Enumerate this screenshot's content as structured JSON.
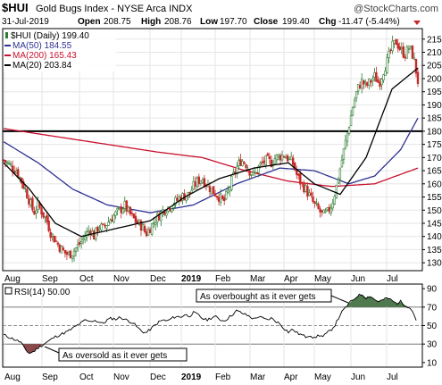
{
  "header": {
    "symbol": "$HUI",
    "name": "Gold Bugs Index - NYSE Arca INDX",
    "watermark": "@StockCharts.com",
    "date": "31-Jul-2019",
    "open_label": "Open",
    "open": "208.75",
    "high_label": "High",
    "high": "208.76",
    "low_label": "Low",
    "low": "197.70",
    "close_label": "Close",
    "close": "199.40",
    "chg_label": "Chg",
    "chg": "-11.47 (-5.44%)"
  },
  "legend": [
    {
      "label": "$HUI (Daily) 199.40",
      "color": "#000000",
      "kind": "candles"
    },
    {
      "label": "MA(50) 184.55",
      "color": "#2e3192",
      "kind": "line"
    },
    {
      "label": "MA(200) 165.43",
      "color": "#c8102e",
      "kind": "line"
    },
    {
      "label": "MA(20) 203.84",
      "color": "#000000",
      "kind": "line"
    }
  ],
  "rsi_legend": {
    "label": "RSI(14) 50.00"
  },
  "annotations": {
    "overbought": "As overbought as it ever gets",
    "oversold": "As oversold as it ever gets"
  },
  "colors": {
    "up": "#2e7d32",
    "down": "#c62828",
    "ma50": "#2e3192",
    "ma200": "#c8102e",
    "ma20": "#000000",
    "rsi_over": "#4f7a4f",
    "rsi_under": "#8b4a4a",
    "grid": "#e6e6e6"
  },
  "chart_data": {
    "type": "candlestick",
    "x_labels": [
      "Aug",
      "Sep",
      "Oct",
      "Nov",
      "Dec",
      "2019",
      "Feb",
      "Mar",
      "Apr",
      "May",
      "Jun",
      "Jul"
    ],
    "y_ticks": [
      130,
      135,
      140,
      145,
      150,
      155,
      160,
      165,
      170,
      175,
      180,
      185,
      190,
      195,
      200,
      205,
      210,
      215
    ],
    "ylim": [
      127,
      219
    ],
    "horizontal_line": 180,
    "price_path": [
      [
        0,
        169
      ],
      [
        3,
        165
      ],
      [
        5,
        158
      ],
      [
        7,
        149
      ],
      [
        8,
        152
      ],
      [
        10,
        146
      ],
      [
        11,
        141
      ],
      [
        13,
        136
      ],
      [
        14,
        134
      ],
      [
        15,
        133
      ],
      [
        16,
        134
      ],
      [
        18,
        138
      ],
      [
        20,
        143
      ],
      [
        21,
        140
      ],
      [
        22,
        144
      ],
      [
        23,
        143
      ],
      [
        25,
        147
      ],
      [
        27,
        150
      ],
      [
        28,
        152
      ],
      [
        29,
        149
      ],
      [
        30,
        147
      ],
      [
        31,
        145
      ],
      [
        32,
        144
      ],
      [
        33,
        141
      ],
      [
        35,
        146
      ],
      [
        37,
        150
      ],
      [
        39,
        152
      ],
      [
        41,
        155
      ],
      [
        43,
        156
      ],
      [
        44,
        159
      ],
      [
        45,
        161
      ],
      [
        46,
        162
      ],
      [
        47,
        160
      ],
      [
        48,
        158
      ],
      [
        50,
        155
      ],
      [
        51,
        153
      ],
      [
        52,
        157
      ],
      [
        53,
        162
      ],
      [
        54,
        166
      ],
      [
        55,
        169
      ],
      [
        56,
        168
      ],
      [
        57,
        165
      ],
      [
        58,
        163
      ],
      [
        59,
        166
      ],
      [
        60,
        168
      ],
      [
        61,
        169
      ],
      [
        62,
        168
      ],
      [
        63,
        170
      ],
      [
        65,
        171
      ],
      [
        67,
        168
      ],
      [
        68,
        163
      ],
      [
        69,
        160
      ],
      [
        70,
        158
      ],
      [
        71,
        155
      ],
      [
        72,
        152
      ],
      [
        73,
        150
      ],
      [
        74,
        148
      ],
      [
        75,
        149
      ],
      [
        76,
        152
      ],
      [
        77,
        158
      ],
      [
        78,
        166
      ],
      [
        79,
        174
      ],
      [
        80,
        182
      ],
      [
        81,
        190
      ],
      [
        82,
        196
      ],
      [
        83,
        199
      ],
      [
        84,
        197
      ],
      [
        85,
        199
      ],
      [
        86,
        201
      ],
      [
        87,
        198
      ],
      [
        88,
        203
      ],
      [
        89,
        207
      ],
      [
        90,
        212
      ],
      [
        91,
        214
      ],
      [
        92,
        211
      ],
      [
        93,
        209
      ],
      [
        94,
        212
      ],
      [
        95,
        208
      ],
      [
        96,
        199
      ]
    ],
    "ma_paths": {
      "ma200": [
        [
          0,
          181
        ],
        [
          12,
          178
        ],
        [
          24,
          175
        ],
        [
          36,
          172
        ],
        [
          46,
          170
        ],
        [
          56,
          165
        ],
        [
          66,
          161
        ],
        [
          76,
          159
        ],
        [
          86,
          160
        ],
        [
          96,
          166
        ]
      ],
      "ma50": [
        [
          0,
          176
        ],
        [
          8,
          168
        ],
        [
          16,
          158
        ],
        [
          24,
          152
        ],
        [
          34,
          149
        ],
        [
          44,
          152
        ],
        [
          54,
          160
        ],
        [
          64,
          166
        ],
        [
          72,
          165
        ],
        [
          80,
          160
        ],
        [
          86,
          163
        ],
        [
          92,
          173
        ],
        [
          96,
          185
        ]
      ],
      "ma20": [
        [
          0,
          168
        ],
        [
          6,
          158
        ],
        [
          12,
          145
        ],
        [
          18,
          140
        ],
        [
          26,
          143
        ],
        [
          34,
          146
        ],
        [
          42,
          155
        ],
        [
          50,
          162
        ],
        [
          58,
          166
        ],
        [
          66,
          168
        ],
        [
          72,
          160
        ],
        [
          78,
          156
        ],
        [
          84,
          170
        ],
        [
          90,
          196
        ],
        [
          96,
          204
        ]
      ]
    },
    "rsi_ticks": [
      10,
      30,
      50,
      70,
      90
    ],
    "rsi_ylim": [
      5,
      95
    ],
    "rsi_levels": [
      30,
      50,
      70
    ],
    "rsi_path": [
      [
        0,
        40
      ],
      [
        2,
        36
      ],
      [
        4,
        32
      ],
      [
        5,
        24
      ],
      [
        6,
        20
      ],
      [
        7,
        22
      ],
      [
        8,
        26
      ],
      [
        9,
        29
      ],
      [
        10,
        32
      ],
      [
        11,
        35
      ],
      [
        12,
        38
      ],
      [
        13,
        40
      ],
      [
        14,
        42
      ],
      [
        15,
        44
      ],
      [
        16,
        47
      ],
      [
        17,
        50
      ],
      [
        18,
        53
      ],
      [
        19,
        56
      ],
      [
        20,
        54
      ],
      [
        21,
        56
      ],
      [
        22,
        54
      ],
      [
        23,
        52
      ],
      [
        24,
        56
      ],
      [
        25,
        58
      ],
      [
        26,
        57
      ],
      [
        27,
        59
      ],
      [
        28,
        57
      ],
      [
        29,
        55
      ],
      [
        30,
        53
      ],
      [
        31,
        48
      ],
      [
        32,
        44
      ],
      [
        33,
        42
      ],
      [
        34,
        46
      ],
      [
        35,
        50
      ],
      [
        36,
        54
      ],
      [
        37,
        56
      ],
      [
        38,
        55
      ],
      [
        39,
        58
      ],
      [
        40,
        60
      ],
      [
        41,
        59
      ],
      [
        42,
        62
      ],
      [
        43,
        60
      ],
      [
        44,
        64
      ],
      [
        45,
        62
      ],
      [
        46,
        58
      ],
      [
        47,
        56
      ],
      [
        48,
        58
      ],
      [
        49,
        60
      ],
      [
        50,
        57
      ],
      [
        51,
        55
      ],
      [
        52,
        58
      ],
      [
        53,
        62
      ],
      [
        54,
        66
      ],
      [
        55,
        64
      ],
      [
        56,
        62
      ],
      [
        57,
        60
      ],
      [
        58,
        57
      ],
      [
        59,
        60
      ],
      [
        60,
        58
      ],
      [
        61,
        56
      ],
      [
        62,
        58
      ],
      [
        63,
        55
      ],
      [
        64,
        52
      ],
      [
        65,
        47
      ],
      [
        66,
        43
      ],
      [
        67,
        46
      ],
      [
        68,
        42
      ],
      [
        69,
        40
      ],
      [
        70,
        38
      ],
      [
        71,
        40
      ],
      [
        72,
        36
      ],
      [
        73,
        40
      ],
      [
        74,
        38
      ],
      [
        75,
        42
      ],
      [
        76,
        46
      ],
      [
        77,
        52
      ],
      [
        78,
        62
      ],
      [
        79,
        68
      ],
      [
        80,
        74
      ],
      [
        81,
        78
      ],
      [
        82,
        82
      ],
      [
        83,
        84
      ],
      [
        84,
        80
      ],
      [
        85,
        82
      ],
      [
        86,
        78
      ],
      [
        87,
        76
      ],
      [
        88,
        78
      ],
      [
        89,
        80
      ],
      [
        90,
        77
      ],
      [
        91,
        74
      ],
      [
        92,
        76
      ],
      [
        93,
        72
      ],
      [
        94,
        70
      ],
      [
        95,
        64
      ],
      [
        96,
        50
      ]
    ]
  }
}
